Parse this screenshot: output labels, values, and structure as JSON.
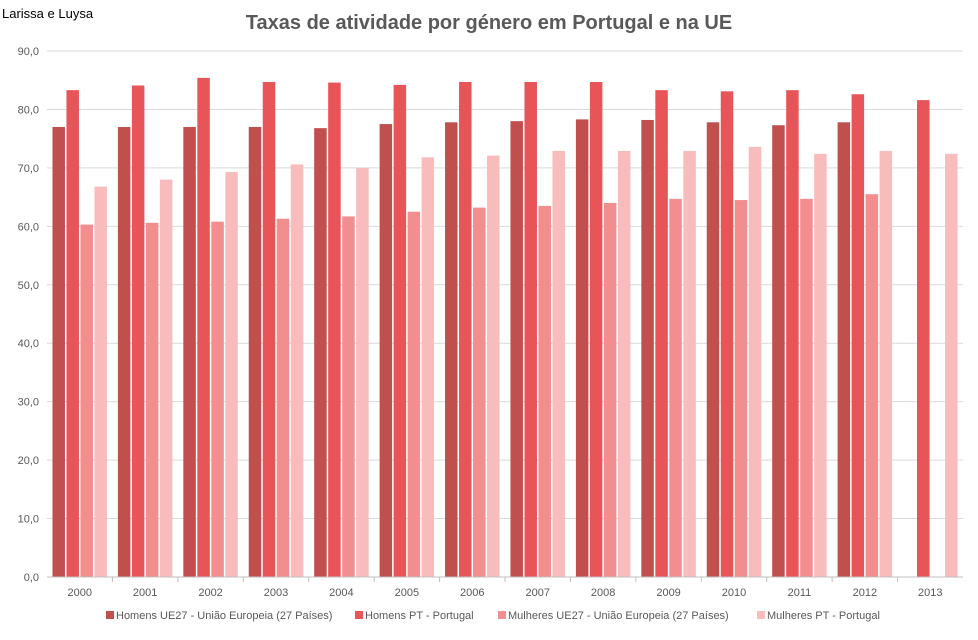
{
  "corner_label": "Larissa e Luysa",
  "chart_data": {
    "type": "bar",
    "title": "Taxas de atividade por género em Portugal e na UE",
    "xlabel": "",
    "ylabel": "",
    "ylim": [
      0,
      90
    ],
    "yticks": [
      "0,0",
      "10,0",
      "20,0",
      "30,0",
      "40,0",
      "50,0",
      "60,0",
      "70,0",
      "80,0",
      "90,0"
    ],
    "ytick_values": [
      0,
      10,
      20,
      30,
      40,
      50,
      60,
      70,
      80,
      90
    ],
    "grid": true,
    "legend_position": "bottom",
    "categories": [
      "2000",
      "2001",
      "2002",
      "2003",
      "2004",
      "2005",
      "2006",
      "2007",
      "2008",
      "2009",
      "2010",
      "2011",
      "2012",
      "2013"
    ],
    "series": [
      {
        "name": "Homens UE27 - União Europeia (27 Países)",
        "color": "#c0504d",
        "values": [
          77.0,
          77.0,
          77.0,
          77.0,
          76.8,
          77.5,
          77.8,
          78.0,
          78.3,
          78.2,
          77.8,
          77.3,
          77.8,
          null
        ]
      },
      {
        "name": "Homens PT - Portugal",
        "color": "#e85558",
        "values": [
          83.3,
          84.1,
          85.4,
          84.7,
          84.6,
          84.2,
          84.7,
          84.7,
          84.7,
          83.3,
          83.1,
          83.3,
          82.6,
          81.6
        ]
      },
      {
        "name": "Mulheres UE27 - União Europeia (27 Países)",
        "color": "#f28e8e",
        "values": [
          60.3,
          60.6,
          60.8,
          61.3,
          61.7,
          62.5,
          63.2,
          63.5,
          64.0,
          64.7,
          64.5,
          64.7,
          65.5,
          null
        ]
      },
      {
        "name": "Mulheres PT - Portugal",
        "color": "#f8bcbc",
        "values": [
          66.8,
          68.0,
          69.3,
          70.6,
          70.0,
          71.8,
          72.1,
          72.9,
          72.9,
          72.9,
          73.6,
          72.4,
          72.9,
          72.4
        ]
      }
    ]
  }
}
